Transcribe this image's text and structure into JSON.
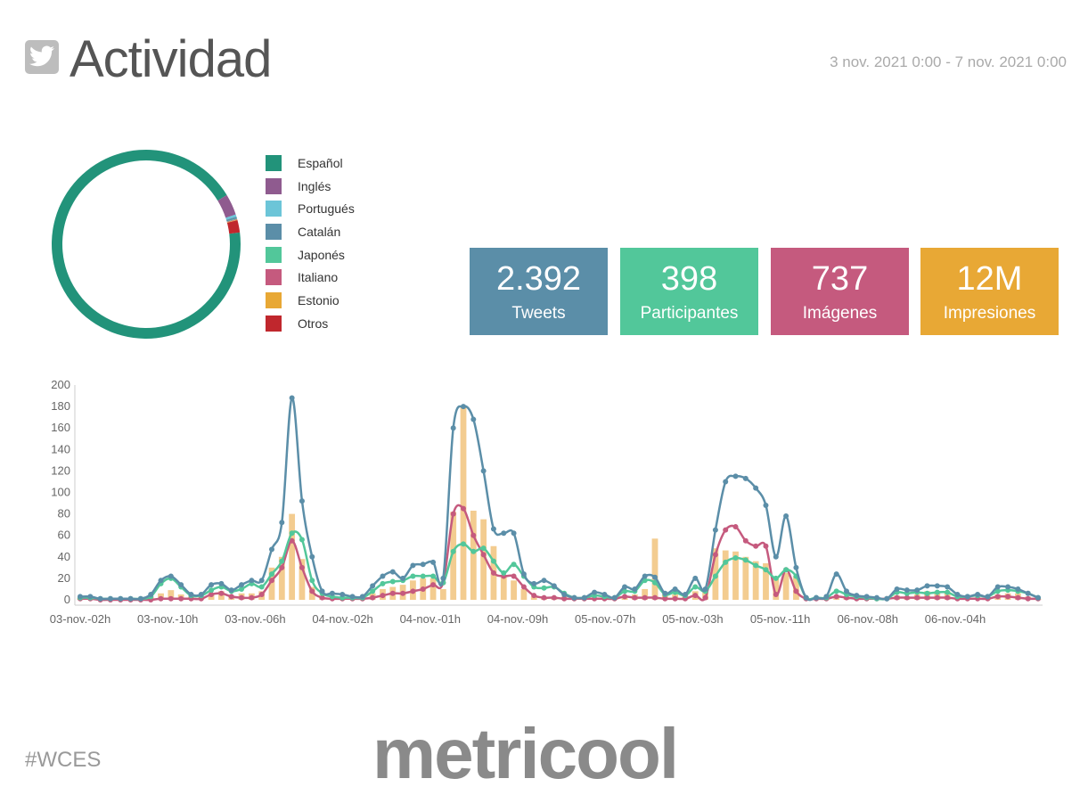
{
  "header": {
    "title": "Actividad",
    "date_range": "3 nov. 2021 0:00 - 7 nov. 2021 0:00",
    "icon": "twitter-icon"
  },
  "language_breakdown": {
    "type": "pie",
    "legend": [
      {
        "label": "Español",
        "color": "#22937a"
      },
      {
        "label": "Inglés",
        "color": "#8f5b8f"
      },
      {
        "label": "Portugués",
        "color": "#6cc5d8"
      },
      {
        "label": "Catalán",
        "color": "#5b8ea8"
      },
      {
        "label": "Japonés",
        "color": "#52c79a"
      },
      {
        "label": "Italiano",
        "color": "#c55a7e"
      },
      {
        "label": "Estonio",
        "color": "#e8a835"
      },
      {
        "label": "Otros",
        "color": "#c0272d"
      }
    ],
    "shares": [
      93.3,
      3.6,
      0.4,
      0.3,
      0.1,
      0.1,
      0.1,
      2.1
    ]
  },
  "kpis": [
    {
      "value": "2.392",
      "label": "Tweets",
      "color": "#5b8ea8"
    },
    {
      "value": "398",
      "label": "Participantes",
      "color": "#52c79a"
    },
    {
      "value": "737",
      "label": "Imágenes",
      "color": "#c55a7e"
    },
    {
      "value": "12M",
      "label": "Impresiones",
      "color": "#e8a835"
    }
  ],
  "chart_data": {
    "type": "line",
    "y_ticks": [
      "0",
      "20",
      "40",
      "60",
      "80",
      "100",
      "120",
      "140",
      "160",
      "180",
      "200"
    ],
    "ylim": [
      0,
      200
    ],
    "x_tick_labels": [
      "03-nov.-02h",
      "03-nov.-10h",
      "03-nov.-06h",
      "04-nov.-02h",
      "04-nov.-01h",
      "04-nov.-09h",
      "05-nov.-07h",
      "05-nov.-03h",
      "05-nov.-11h",
      "06-nov.-08h",
      "06-nov.-04h"
    ],
    "series": [
      {
        "name": "",
        "kind": "line",
        "color": "#5b8ea8",
        "values": [
          3,
          3,
          1,
          1,
          1,
          1,
          1,
          5,
          18,
          22,
          14,
          5,
          5,
          14,
          15,
          9,
          14,
          18,
          18,
          47,
          72,
          188,
          92,
          40,
          8,
          6,
          5,
          3,
          3,
          13,
          22,
          26,
          20,
          32,
          33,
          35,
          20,
          160,
          180,
          168,
          120,
          66,
          62,
          62,
          24,
          15,
          18,
          13,
          5,
          2,
          2,
          7,
          5,
          2,
          12,
          10,
          22,
          21,
          6,
          10,
          5,
          20,
          10,
          65,
          110,
          115,
          113,
          104,
          88,
          40,
          78,
          30,
          2,
          2,
          3,
          24,
          8,
          4,
          3,
          2,
          1,
          10,
          9,
          9,
          13,
          13,
          12,
          5,
          3,
          5,
          3,
          12,
          12,
          10,
          6,
          2
        ]
      },
      {
        "name": "",
        "kind": "line",
        "color": "#52c79a",
        "values": [
          2,
          2,
          1,
          1,
          1,
          1,
          1,
          3,
          15,
          20,
          12,
          4,
          4,
          9,
          12,
          8,
          10,
          15,
          12,
          24,
          36,
          62,
          56,
          18,
          6,
          3,
          2,
          2,
          2,
          8,
          15,
          17,
          18,
          22,
          22,
          22,
          16,
          45,
          52,
          45,
          48,
          36,
          25,
          33,
          22,
          12,
          11,
          12,
          6,
          2,
          2,
          4,
          3,
          2,
          8,
          8,
          18,
          16,
          5,
          7,
          4,
          12,
          8,
          22,
          35,
          39,
          37,
          32,
          28,
          20,
          28,
          22,
          2,
          2,
          2,
          8,
          5,
          3,
          2,
          1,
          1,
          7,
          6,
          7,
          6,
          7,
          7,
          3,
          3,
          4,
          3,
          8,
          9,
          8,
          6,
          2
        ]
      },
      {
        "name": "",
        "kind": "line",
        "color": "#c55a7e",
        "values": [
          1,
          1,
          0,
          0,
          0,
          0,
          0,
          0,
          1,
          1,
          1,
          1,
          1,
          5,
          6,
          3,
          2,
          2,
          5,
          18,
          30,
          55,
          30,
          8,
          2,
          1,
          1,
          1,
          1,
          2,
          4,
          6,
          6,
          8,
          10,
          14,
          16,
          80,
          85,
          60,
          42,
          25,
          22,
          22,
          12,
          4,
          2,
          2,
          1,
          1,
          1,
          1,
          1,
          1,
          3,
          2,
          2,
          2,
          1,
          1,
          1,
          4,
          2,
          42,
          65,
          68,
          55,
          50,
          50,
          5,
          28,
          8,
          1,
          1,
          1,
          3,
          2,
          1,
          1,
          1,
          1,
          2,
          2,
          2,
          2,
          2,
          2,
          1,
          1,
          1,
          1,
          3,
          3,
          2,
          1,
          1
        ]
      },
      {
        "name": "",
        "kind": "bar",
        "color": "#f3cc90",
        "values": [
          2,
          2,
          1,
          1,
          1,
          1,
          1,
          3,
          6,
          9,
          5,
          3,
          3,
          6,
          8,
          4,
          6,
          6,
          8,
          30,
          40,
          80,
          38,
          12,
          2,
          1,
          1,
          1,
          1,
          6,
          10,
          12,
          14,
          18,
          20,
          20,
          10,
          82,
          180,
          83,
          75,
          50,
          22,
          18,
          10,
          3,
          2,
          3,
          3,
          1,
          1,
          1,
          2,
          1,
          3,
          5,
          10,
          57,
          5,
          5,
          4,
          8,
          10,
          48,
          46,
          45,
          40,
          36,
          34,
          22,
          25,
          22,
          2,
          2,
          1,
          3,
          2,
          2,
          1,
          1,
          1,
          4,
          3,
          5,
          8,
          8,
          8,
          2,
          2,
          2,
          2,
          5,
          6,
          6,
          3,
          1
        ]
      }
    ]
  },
  "footer": {
    "hashtag": "#WCES",
    "brand": "metricool"
  }
}
